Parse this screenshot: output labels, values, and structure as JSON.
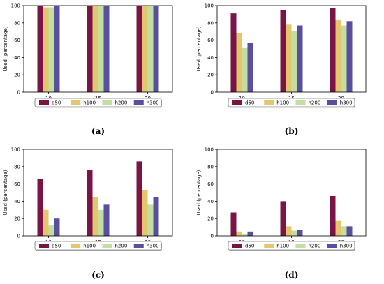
{
  "colors": {
    "d50": "#7a1444",
    "h100": "#e3c66d",
    "h200": "#c4dda0",
    "h300": "#5a4f9e"
  },
  "chart_data": [
    {
      "panel_label": "(a)",
      "type": "bar",
      "categories": [
        "10",
        "15",
        "20"
      ],
      "series": [
        {
          "name": "d50",
          "values": [
            100,
            100,
            100
          ]
        },
        {
          "name": "h100",
          "values": [
            98,
            100,
            100
          ]
        },
        {
          "name": "h200",
          "values": [
            98,
            100,
            100
          ]
        },
        {
          "name": "h300",
          "values": [
            100,
            100,
            100
          ]
        }
      ],
      "ylabel": "Used (percentage)",
      "ylim": [
        0,
        100
      ],
      "yticks": [
        "0",
        "20",
        "40",
        "60",
        "80",
        "100"
      ],
      "legend": "bottom-center",
      "grid": false
    },
    {
      "panel_label": "(b)",
      "type": "bar",
      "categories": [
        "10",
        "15",
        "20"
      ],
      "series": [
        {
          "name": "d50",
          "values": [
            91,
            95,
            97
          ]
        },
        {
          "name": "h100",
          "values": [
            68,
            78,
            83
          ]
        },
        {
          "name": "h200",
          "values": [
            51,
            71,
            77
          ]
        },
        {
          "name": "h300",
          "values": [
            57,
            77,
            82
          ]
        }
      ],
      "ylabel": "Used (percentage)",
      "ylim": [
        0,
        100
      ],
      "yticks": [
        "0",
        "20",
        "40",
        "60",
        "80",
        "100"
      ],
      "legend": "bottom-center",
      "grid": false
    },
    {
      "panel_label": "(c)",
      "type": "bar",
      "categories": [
        "10",
        "15",
        "20"
      ],
      "series": [
        {
          "name": "d50",
          "values": [
            66,
            76,
            86
          ]
        },
        {
          "name": "h100",
          "values": [
            30,
            45,
            53
          ]
        },
        {
          "name": "h200",
          "values": [
            12,
            30,
            36
          ]
        },
        {
          "name": "h300",
          "values": [
            20,
            36,
            45
          ]
        }
      ],
      "ylabel": "Used (percentage)",
      "ylim": [
        0,
        100
      ],
      "yticks": [
        "0",
        "20",
        "40",
        "60",
        "80",
        "100"
      ],
      "legend": "bottom-center",
      "grid": false
    },
    {
      "panel_label": "(d)",
      "type": "bar",
      "categories": [
        "10",
        "15",
        "20"
      ],
      "series": [
        {
          "name": "d50",
          "values": [
            27,
            40,
            46
          ]
        },
        {
          "name": "h100",
          "values": [
            5,
            11,
            18
          ]
        },
        {
          "name": "h200",
          "values": [
            2,
            6,
            11
          ]
        },
        {
          "name": "h300",
          "values": [
            5,
            7,
            11
          ]
        }
      ],
      "ylabel": "Used (percentage)",
      "ylim": [
        0,
        100
      ],
      "yticks": [
        "0",
        "20",
        "40",
        "60",
        "80",
        "100"
      ],
      "legend": "bottom-center",
      "grid": false
    }
  ]
}
